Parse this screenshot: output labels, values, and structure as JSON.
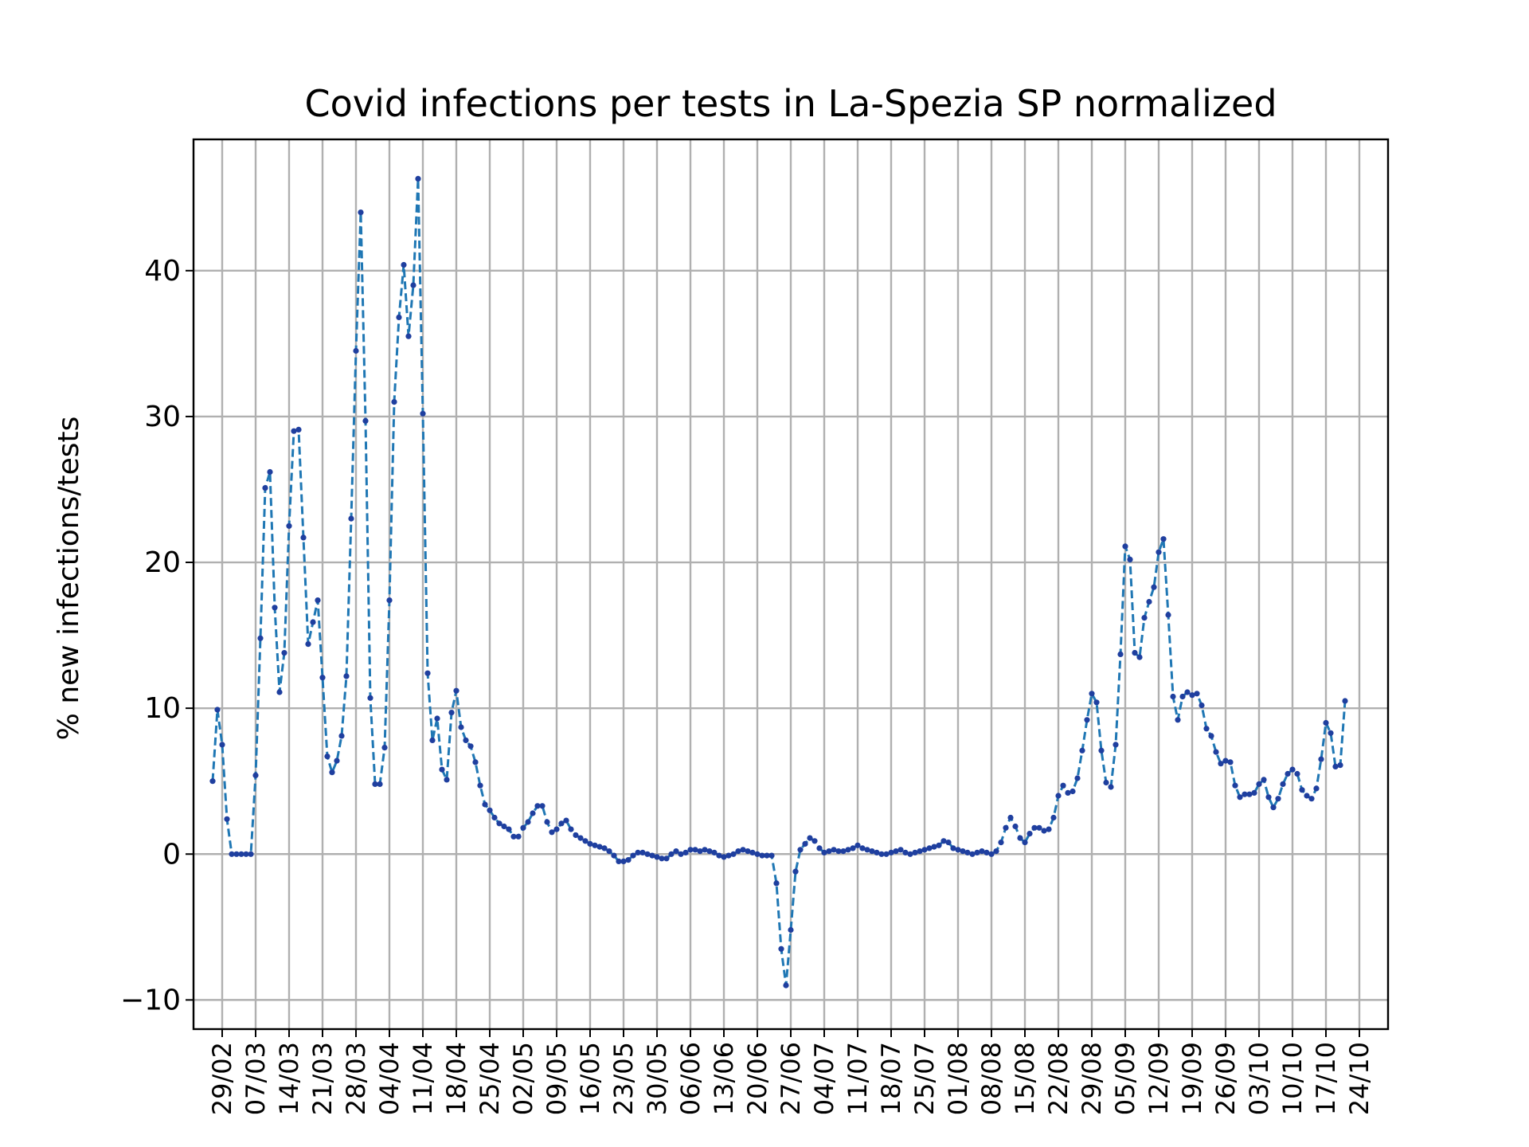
{
  "chart_data": {
    "type": "line",
    "title": "Covid infections per tests in La-Spezia SP normalized",
    "ylabel": "% new infections/tests",
    "xlabel": "",
    "ylim": [
      -12,
      49
    ],
    "yticks": [
      -10,
      0,
      10,
      20,
      30,
      40
    ],
    "ytick_labels": [
      "−10",
      "0",
      "10",
      "20",
      "30",
      "40"
    ],
    "xlim": [
      "2020-02-23",
      "2020-10-30"
    ],
    "grid": true,
    "xticks": [
      {
        "date": "2020-02-29",
        "label": "29/02"
      },
      {
        "date": "2020-03-07",
        "label": "07/03"
      },
      {
        "date": "2020-03-14",
        "label": "14/03"
      },
      {
        "date": "2020-03-21",
        "label": "21/03"
      },
      {
        "date": "2020-03-28",
        "label": "28/03"
      },
      {
        "date": "2020-04-04",
        "label": "04/04"
      },
      {
        "date": "2020-04-11",
        "label": "11/04"
      },
      {
        "date": "2020-04-18",
        "label": "18/04"
      },
      {
        "date": "2020-04-25",
        "label": "25/04"
      },
      {
        "date": "2020-05-02",
        "label": "02/05"
      },
      {
        "date": "2020-05-09",
        "label": "09/05"
      },
      {
        "date": "2020-05-16",
        "label": "16/05"
      },
      {
        "date": "2020-05-23",
        "label": "23/05"
      },
      {
        "date": "2020-05-30",
        "label": "30/05"
      },
      {
        "date": "2020-06-06",
        "label": "06/06"
      },
      {
        "date": "2020-06-13",
        "label": "13/06"
      },
      {
        "date": "2020-06-20",
        "label": "20/06"
      },
      {
        "date": "2020-06-27",
        "label": "27/06"
      },
      {
        "date": "2020-07-04",
        "label": "04/07"
      },
      {
        "date": "2020-07-11",
        "label": "11/07"
      },
      {
        "date": "2020-07-18",
        "label": "18/07"
      },
      {
        "date": "2020-07-25",
        "label": "25/07"
      },
      {
        "date": "2020-08-01",
        "label": "01/08"
      },
      {
        "date": "2020-08-08",
        "label": "08/08"
      },
      {
        "date": "2020-08-15",
        "label": "15/08"
      },
      {
        "date": "2020-08-22",
        "label": "22/08"
      },
      {
        "date": "2020-08-29",
        "label": "29/08"
      },
      {
        "date": "2020-09-05",
        "label": "05/09"
      },
      {
        "date": "2020-09-12",
        "label": "12/09"
      },
      {
        "date": "2020-09-19",
        "label": "19/09"
      },
      {
        "date": "2020-09-26",
        "label": "26/09"
      },
      {
        "date": "2020-10-03",
        "label": "03/10"
      },
      {
        "date": "2020-10-10",
        "label": "10/10"
      },
      {
        "date": "2020-10-17",
        "label": "17/10"
      },
      {
        "date": "2020-10-24",
        "label": "24/10"
      }
    ],
    "series": [
      {
        "color": "#1f77b4",
        "marker_color": "#1f3f9f",
        "style": "dashed with point markers",
        "start_date": "2020-02-27",
        "step_days": 1,
        "values": [
          5.0,
          9.9,
          7.5,
          2.4,
          0.0,
          0.0,
          0.0,
          0.0,
          0.0,
          5.4,
          14.8,
          25.1,
          26.2,
          16.9,
          11.1,
          13.8,
          22.5,
          29.0,
          29.1,
          21.7,
          14.4,
          15.9,
          17.4,
          12.1,
          6.7,
          5.6,
          6.4,
          8.1,
          12.2,
          23.0,
          34.5,
          44.0,
          29.7,
          10.7,
          4.8,
          4.8,
          7.3,
          17.4,
          31.0,
          36.8,
          40.4,
          35.5,
          39.0,
          46.3,
          30.2,
          12.4,
          7.8,
          9.3,
          5.8,
          5.1,
          9.7,
          11.2,
          8.7,
          7.8,
          7.4,
          6.3,
          4.7,
          3.4,
          3.0,
          2.5,
          2.1,
          1.9,
          1.7,
          1.2,
          1.2,
          1.8,
          2.2,
          2.8,
          3.3,
          3.3,
          2.2,
          1.5,
          1.7,
          2.1,
          2.3,
          1.7,
          1.3,
          1.1,
          0.9,
          0.7,
          0.6,
          0.5,
          0.4,
          0.2,
          -0.1,
          -0.5,
          -0.5,
          -0.4,
          -0.1,
          0.1,
          0.1,
          0.0,
          -0.1,
          -0.2,
          -0.3,
          -0.3,
          0.0,
          0.2,
          0.0,
          0.1,
          0.3,
          0.3,
          0.2,
          0.3,
          0.2,
          0.1,
          -0.1,
          -0.2,
          -0.1,
          0.0,
          0.2,
          0.3,
          0.2,
          0.1,
          0.0,
          -0.1,
          -0.1,
          -0.1,
          -2.0,
          -6.5,
          -9.0,
          -5.2,
          -1.2,
          0.3,
          0.7,
          1.1,
          0.9,
          0.4,
          0.1,
          0.2,
          0.3,
          0.2,
          0.2,
          0.3,
          0.4,
          0.6,
          0.4,
          0.3,
          0.2,
          0.1,
          0.0,
          0.0,
          0.1,
          0.2,
          0.3,
          0.1,
          0.0,
          0.1,
          0.2,
          0.3,
          0.4,
          0.5,
          0.6,
          0.9,
          0.8,
          0.4,
          0.3,
          0.2,
          0.1,
          0.0,
          0.1,
          0.2,
          0.1,
          0.0,
          0.2,
          0.8,
          1.8,
          2.5,
          1.9,
          1.1,
          0.8,
          1.4,
          1.8,
          1.8,
          1.6,
          1.7,
          2.5,
          4.0,
          4.7,
          4.2,
          4.3,
          5.2,
          7.1,
          9.2,
          11.0,
          10.4,
          7.1,
          4.9,
          4.6,
          7.5,
          13.7,
          21.1,
          20.2,
          13.8,
          13.5,
          16.2,
          17.3,
          18.3,
          20.7,
          21.6,
          16.4,
          10.8,
          9.2,
          10.8,
          11.1,
          10.9,
          11.0,
          10.2,
          8.6,
          8.1,
          7.0,
          6.2,
          6.4,
          6.3,
          4.7,
          3.9,
          4.1,
          4.1,
          4.2,
          4.8,
          5.1,
          3.9,
          3.2,
          3.8,
          4.8,
          5.5,
          5.8,
          5.5,
          4.4,
          4.0,
          3.8,
          4.5,
          6.5,
          9.0,
          8.3,
          6.0,
          6.1,
          10.5
        ]
      }
    ]
  }
}
